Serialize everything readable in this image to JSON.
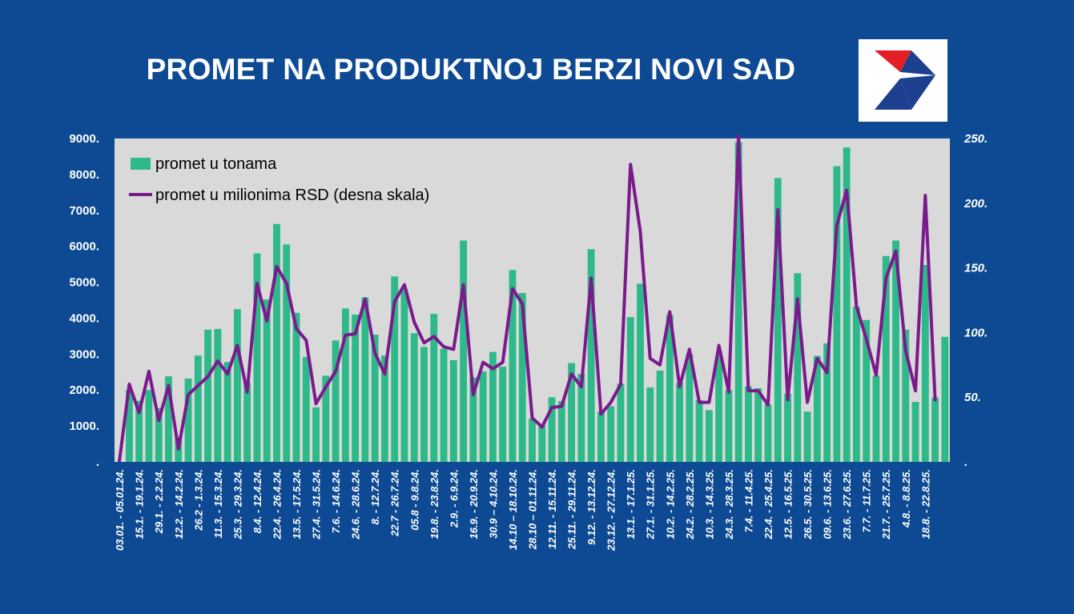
{
  "title": "PROMET NA PRODUKTNOJ BERZI NOVI SAD",
  "logo": {
    "icon": "berza-logo-icon",
    "colors": [
      "#e31e24",
      "#1c3f8f"
    ]
  },
  "colors": {
    "background": "#0e4a93",
    "plot_area": "#d9d9d9",
    "bars": "#2db98a",
    "line": "#7a1a8c"
  },
  "chart_data": {
    "type": "bar",
    "categories": [
      "03.01. - 05.01.24.",
      "",
      "15.1. - 19.1.24.",
      "",
      "29.1. - 2.2.24.",
      "",
      "12.2. - 14.2.24.",
      "",
      "26.2 - 1.3.24.",
      "",
      "11.3. - 15.3.24.",
      "",
      "25.3. - 29.3.24.",
      "",
      "8.4. - 12.4.24.",
      "",
      "22.4. - 26.4.24.",
      "",
      "13.5. - 17.5.24.",
      "",
      "27.4. - 31.5.24.",
      "",
      "7.6. - 14.6.24.",
      "",
      "24.6. - 28.6.24.",
      "",
      "8. - 12.7.24.",
      "",
      "22.7 - 26.7.24.",
      "",
      "05.8 - 9.8.24.",
      "",
      "19.8. - 23.8.24.",
      "",
      "2.9. - 6.9.24.",
      "",
      "16.9. - 20.9.24.",
      "",
      "30.9 – 4.10.24.",
      "",
      "14.10 – 18.10.24.",
      "",
      "28.10 – 01.11.24.",
      "",
      "12.11. - 15.11.24.",
      "",
      "25.11. - 29.11.24.",
      "",
      "9.12. - 13.12.24.",
      "",
      "23.12. - 27.12.24.",
      "",
      "13.1. - 17.1.25.",
      "",
      "27.1. - 31.1.25.",
      "",
      "10.2. - 14.2.25.",
      "",
      "24.2. - 28.2.25.",
      "",
      "10.3. - 14.3.25.",
      "",
      "24.3. - 28.3.25.",
      "",
      "7.4. - 11.4.25.",
      "",
      "22.4. - 25.4.25.",
      "",
      "12.5. - 16.5.25.",
      "",
      "26.5. - 30.5.25.",
      "",
      "09.6. - 13.6.25.",
      "",
      "23.6. - 27.6.25.",
      "",
      "7.7. - 11.7.25.",
      "",
      "21.7. - 25.7.25.",
      "",
      "4.8. - 8.8.25.",
      "",
      "18.8. - 22.8.25.",
      "",
      ""
    ],
    "series": [
      {
        "name": "promet u tonama",
        "axis": "left",
        "values": [
          0,
          2000,
          1700,
          2000,
          1500,
          2380,
          700,
          2320,
          2960,
          3680,
          3700,
          2780,
          4250,
          2200,
          5800,
          4520,
          6620,
          6050,
          4150,
          2920,
          1520,
          2400,
          3380,
          4270,
          4100,
          4580,
          3540,
          2960,
          5160,
          4800,
          3580,
          3200,
          4120,
          3150,
          2830,
          6160,
          2350,
          2520,
          3060,
          2650,
          5340,
          4700,
          1200,
          1030,
          1800,
          1690,
          2750,
          2450,
          5920,
          1400,
          1550,
          2180,
          4030,
          4960,
          2070,
          2540,
          4090,
          2200,
          2990,
          1720,
          1440,
          2950,
          2000,
          8900,
          2100,
          2050,
          1600,
          7900,
          1900,
          5250,
          1400,
          2950,
          3300,
          8230,
          8750,
          4320,
          3950,
          2400,
          5730,
          6160,
          3680,
          1670,
          5480,
          1790,
          3480
        ]
      },
      {
        "name": "promet u milionima RSD (desna skala)",
        "axis": "right",
        "values": [
          1,
          60,
          38,
          70,
          32,
          59,
          10,
          52,
          59,
          66,
          78,
          68,
          90,
          54,
          138,
          109,
          151,
          138,
          103,
          94,
          45,
          58,
          70,
          98,
          99,
          126,
          84,
          68,
          124,
          137,
          108,
          92,
          97,
          89,
          87,
          137,
          52,
          77,
          72,
          77,
          134,
          122,
          34,
          27,
          42,
          43,
          68,
          58,
          142,
          37,
          46,
          60,
          230,
          178,
          80,
          75,
          116,
          58,
          87,
          46,
          46,
          90,
          54,
          252,
          55,
          55,
          44,
          195,
          48,
          126,
          46,
          80,
          69,
          183,
          210,
          120,
          95,
          67,
          142,
          163,
          86,
          55,
          206,
          48,
          null
        ]
      }
    ],
    "y_left": {
      "ticks": [
        "9000.",
        "8000.",
        "7000.",
        "6000.",
        "5000.",
        "4000.",
        "3000.",
        "2000.",
        "1000.",
        "."
      ],
      "ylim": [
        0,
        9000
      ]
    },
    "y_right": {
      "ticks": [
        "250.",
        "200.",
        "150.",
        "100.",
        "50.",
        "."
      ],
      "ylim": [
        0,
        250
      ]
    },
    "legend": {
      "position": "top-left"
    },
    "grid": false
  }
}
